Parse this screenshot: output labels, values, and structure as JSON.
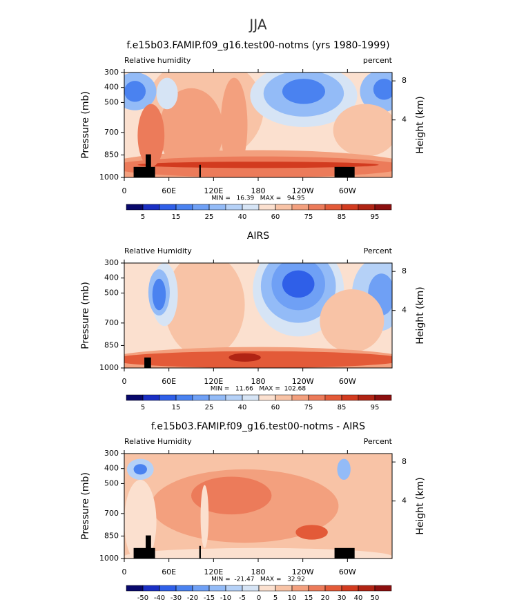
{
  "title": "JJA",
  "chart_data": [
    {
      "type": "contour",
      "title": "f.e15b03.FAMIP.f09_g16.test00-notms (yrs 1980-1999)",
      "left_label": "Relative humidity",
      "right_label": "percent",
      "ylabel": "Pressure (mb)",
      "y2label": "Height (km)",
      "ylim": [
        1000,
        300
      ],
      "yticks": [
        300,
        400,
        500,
        700,
        850,
        1000
      ],
      "y2ticks": [
        8,
        4
      ],
      "xlim": [
        0,
        360
      ],
      "xticks": [
        0,
        {
          "value": 60,
          "label": "60E"
        },
        {
          "value": 120,
          "label": "120E"
        },
        180,
        {
          "value": 240,
          "label": "120W"
        },
        {
          "value": 300,
          "label": "60W"
        }
      ],
      "stats": "MIN =   16.39   MAX =   94.95",
      "colorbar": {
        "levels": [
          5,
          null,
          15,
          null,
          25,
          null,
          40,
          null,
          60,
          null,
          75,
          null,
          85,
          null,
          95
        ],
        "colors": [
          "#08086b",
          "#1a2fc4",
          "#2f5fe8",
          "#4a82f0",
          "#6fa0f5",
          "#93bbf7",
          "#b5d1f7",
          "#d6e4f5",
          "#fbe0cf",
          "#f8c3a6",
          "#f3a07e",
          "#ec7b5a",
          "#e35a38",
          "#d23b1f",
          "#b02414",
          "#8b0f0f"
        ]
      }
    },
    {
      "type": "contour",
      "title": "AIRS",
      "left_label": "Relative Humidity",
      "right_label": "Percent",
      "ylabel": "Pressure (mb)",
      "y2label": "Height (km)",
      "ylim": [
        1000,
        300
      ],
      "yticks": [
        300,
        400,
        500,
        700,
        850,
        1000
      ],
      "y2ticks": [
        8,
        4
      ],
      "xlim": [
        0,
        360
      ],
      "xticks": [
        0,
        {
          "value": 60,
          "label": "60E"
        },
        {
          "value": 120,
          "label": "120E"
        },
        180,
        {
          "value": 240,
          "label": "120W"
        },
        {
          "value": 300,
          "label": "60W"
        }
      ],
      "stats": "MIN =   11.66   MAX =  102.68",
      "colorbar": {
        "levels": [
          5,
          null,
          15,
          null,
          25,
          null,
          40,
          null,
          60,
          null,
          75,
          null,
          85,
          null,
          95
        ],
        "colors": [
          "#08086b",
          "#1a2fc4",
          "#2f5fe8",
          "#4a82f0",
          "#6fa0f5",
          "#93bbf7",
          "#b5d1f7",
          "#d6e4f5",
          "#fbe0cf",
          "#f8c3a6",
          "#f3a07e",
          "#ec7b5a",
          "#e35a38",
          "#d23b1f",
          "#b02414",
          "#8b0f0f"
        ]
      }
    },
    {
      "type": "contour",
      "title": "f.e15b03.FAMIP.f09_g16.test00-notms - AIRS",
      "left_label": "Relative Humidity",
      "right_label": "Percent",
      "ylabel": "Pressure (mb)",
      "y2label": "Height (km)",
      "ylim": [
        1000,
        300
      ],
      "yticks": [
        300,
        400,
        500,
        700,
        850,
        1000
      ],
      "y2ticks": [
        8,
        4
      ],
      "xlim": [
        0,
        360
      ],
      "xticks": [
        0,
        {
          "value": 60,
          "label": "60E"
        },
        {
          "value": 120,
          "label": "120E"
        },
        180,
        {
          "value": 240,
          "label": "120W"
        },
        {
          "value": 300,
          "label": "60W"
        }
      ],
      "stats": "MIN =  -21.47   MAX =   32.92",
      "colorbar": {
        "levels": [
          -50,
          -40,
          -30,
          -20,
          -15,
          -10,
          -5,
          0,
          5,
          10,
          15,
          20,
          30,
          40,
          50
        ],
        "colors": [
          "#08086b",
          "#1a2fc4",
          "#2f5fe8",
          "#4a82f0",
          "#6fa0f5",
          "#93bbf7",
          "#b5d1f7",
          "#d6e4f5",
          "#fbe0cf",
          "#f8c3a6",
          "#f3a07e",
          "#ec7b5a",
          "#e35a38",
          "#d23b1f",
          "#b02414",
          "#8b0f0f"
        ]
      }
    }
  ]
}
